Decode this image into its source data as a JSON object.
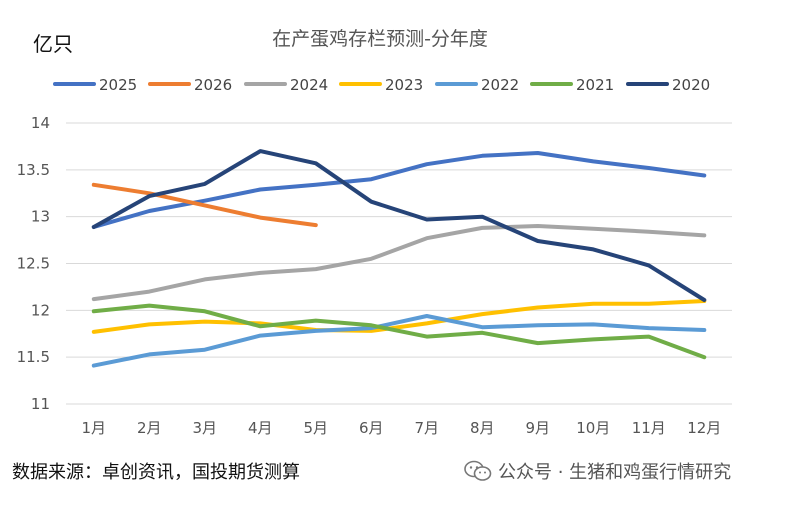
{
  "chart_data": {
    "type": "line",
    "title": "在产蛋鸡存栏预测-分年度",
    "ylabel": "亿只",
    "xlabel": "",
    "ylim": [
      11,
      14
    ],
    "yticks": [
      "14",
      "13.5",
      "13",
      "12.5",
      "12",
      "11.5",
      "11"
    ],
    "categories": [
      "1月",
      "2月",
      "3月",
      "4月",
      "5月",
      "6月",
      "7月",
      "8月",
      "9月",
      "10月",
      "11月",
      "12月"
    ],
    "legend_position": "top",
    "grid": true,
    "series": [
      {
        "name": "2025",
        "color": "#4472c4",
        "values": [
          12.89,
          13.06,
          13.17,
          13.29,
          13.34,
          13.4,
          13.56,
          13.65,
          13.68,
          13.59,
          13.52,
          13.44
        ]
      },
      {
        "name": "2026",
        "color": "#ed7d31",
        "values": [
          13.34,
          13.25,
          13.12,
          12.99,
          12.91,
          null,
          null,
          null,
          null,
          null,
          null,
          null
        ]
      },
      {
        "name": "2024",
        "color": "#a5a5a5",
        "values": [
          12.12,
          12.2,
          12.33,
          12.4,
          12.44,
          12.55,
          12.77,
          12.88,
          12.9,
          12.87,
          12.84,
          12.8
        ]
      },
      {
        "name": "2023",
        "color": "#ffc000",
        "values": [
          11.77,
          11.85,
          11.88,
          11.86,
          11.79,
          11.78,
          11.86,
          11.96,
          12.03,
          12.07,
          12.07,
          12.1
        ]
      },
      {
        "name": "2022",
        "color": "#5b9bd5",
        "values": [
          11.41,
          11.53,
          11.58,
          11.73,
          11.78,
          11.81,
          11.94,
          11.82,
          11.84,
          11.85,
          11.81,
          11.79
        ]
      },
      {
        "name": "2021",
        "color": "#70ad47",
        "values": [
          11.99,
          12.05,
          11.99,
          11.83,
          11.89,
          11.84,
          11.72,
          11.76,
          11.65,
          11.69,
          11.72,
          11.5
        ]
      },
      {
        "name": "2020",
        "color": "#264478",
        "values": [
          12.89,
          13.22,
          13.35,
          13.7,
          13.57,
          13.16,
          12.97,
          13.0,
          12.74,
          12.65,
          12.48,
          12.11
        ]
      }
    ]
  },
  "footer": {
    "source": "数据来源：卓创资讯，国投期货测算",
    "watermark": "公众号 · 生猪和鸡蛋行情研究",
    "watermark_icon": "wechat-icon"
  }
}
